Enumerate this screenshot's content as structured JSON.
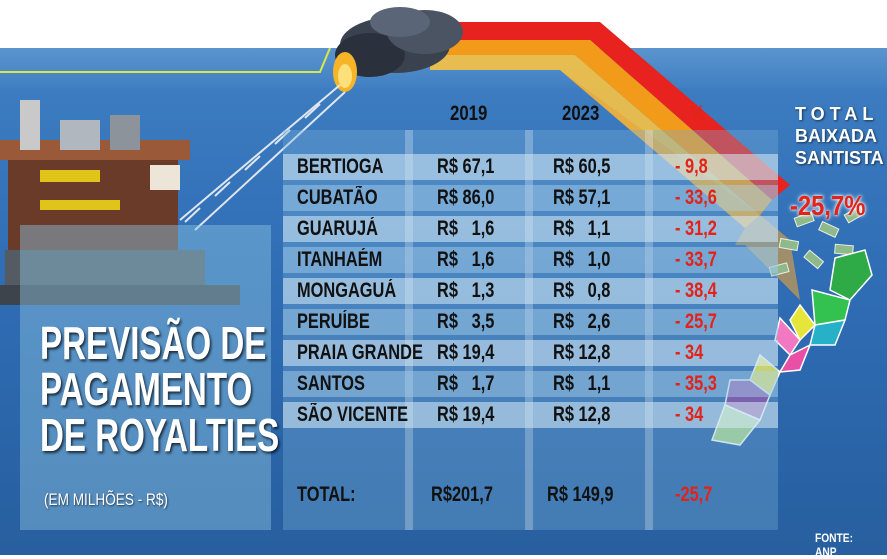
{
  "title_lines": [
    "PREVISÃO DE",
    "PAGAMENTO",
    "DE ROYALTIES"
  ],
  "subtitle": "(EM MILHÕES - R$)",
  "columns": {
    "year1": "2019",
    "year2": "2023",
    "pct": "%"
  },
  "rows": [
    {
      "city": "BERTIOGA",
      "v2019": "R$ 67,1",
      "v2023": "R$ 60,5",
      "pct": "- 9,8"
    },
    {
      "city": "CUBATÃO",
      "v2019": "R$ 86,0",
      "v2023": "R$ 57,1",
      "pct": "- 33,6"
    },
    {
      "city": "GUARUJÁ",
      "v2019": "R$   1,6",
      "v2023": "R$   1,1",
      "pct": "- 31,2"
    },
    {
      "city": "ITANHAÉM",
      "v2019": "R$   1,6",
      "v2023": "R$   1,0",
      "pct": "- 33,7"
    },
    {
      "city": "MONGAGUÁ",
      "v2019": "R$   1,3",
      "v2023": "R$   0,8",
      "pct": "- 38,4"
    },
    {
      "city": "PERUÍBE",
      "v2019": "R$   3,5",
      "v2023": "R$   2,6",
      "pct": "- 25,7"
    },
    {
      "city": "PRAIA GRANDE",
      "v2019": "R$ 19,4",
      "v2023": "R$ 12,8",
      "pct": "- 34"
    },
    {
      "city": "SANTOS",
      "v2019": "R$   1,7",
      "v2023": "R$   1,1",
      "pct": "- 35,3"
    },
    {
      "city": "SÃO VICENTE",
      "v2019": "R$ 19,4",
      "v2023": "R$ 12,8",
      "pct": "- 34"
    }
  ],
  "total": {
    "label": "TOTAL:",
    "v2019": "R$201,7",
    "v2023": "R$ 149,9",
    "pct": "-25,7"
  },
  "baixada": {
    "line1": "TOTAL",
    "line2": "BAIXADA",
    "line3": "SANTISTA",
    "pct": "-25,7%"
  },
  "fonte": "FONTE: ANP",
  "colors": {
    "background": "#2f6db5",
    "negative": "#e2231a",
    "text": "#111111"
  }
}
